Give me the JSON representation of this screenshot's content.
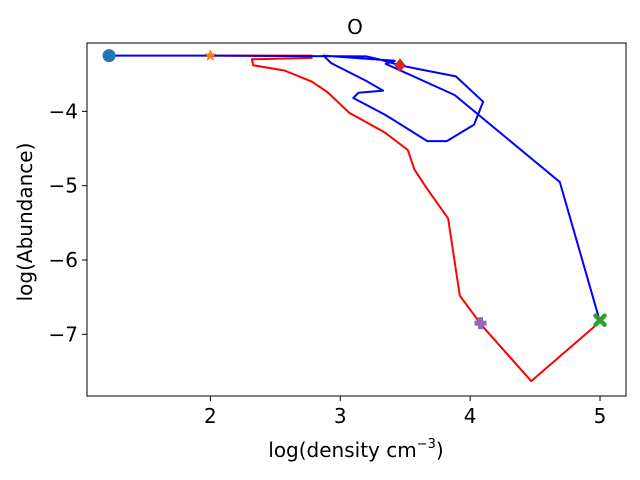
{
  "chart_data": {
    "type": "line",
    "title": "O",
    "xlabel_main": "log(density cm",
    "xlabel_sup": "−3",
    "xlabel_end": ")",
    "ylabel": "log(Abundance)",
    "xlim": [
      1.05,
      5.2
    ],
    "ylim": [
      -7.83,
      -3.08
    ],
    "x_ticks": [
      2,
      3,
      4,
      5
    ],
    "x_tick_labels": [
      "2",
      "3",
      "4",
      "5"
    ],
    "y_ticks": [
      -4,
      -5,
      -6,
      -7
    ],
    "y_tick_labels": [
      "−4",
      "−5",
      "−6",
      "−7"
    ],
    "grid": false,
    "legend": "none",
    "series": [
      {
        "color": "#ff0000",
        "points": [
          [
            2.0,
            -3.25
          ],
          [
            2.78,
            -3.25
          ],
          [
            2.78,
            -3.28
          ],
          [
            2.32,
            -3.3
          ],
          [
            2.33,
            -3.38
          ],
          [
            2.57,
            -3.45
          ],
          [
            2.78,
            -3.6
          ],
          [
            2.9,
            -3.74
          ],
          [
            3.07,
            -4.02
          ],
          [
            3.34,
            -4.28
          ],
          [
            3.52,
            -4.52
          ],
          [
            3.57,
            -4.78
          ],
          [
            3.66,
            -5.02
          ],
          [
            3.83,
            -5.44
          ],
          [
            3.92,
            -6.48
          ],
          [
            4.09,
            -6.88
          ],
          [
            4.47,
            -7.63
          ],
          [
            5.0,
            -6.83
          ]
        ]
      },
      {
        "color": "#0000ff",
        "points": [
          [
            1.22,
            -3.25
          ],
          [
            2.0,
            -3.25
          ],
          [
            3.2,
            -3.26
          ],
          [
            3.3,
            -3.3
          ],
          [
            3.46,
            -3.38
          ],
          [
            3.6,
            -3.43
          ],
          [
            3.89,
            -3.53
          ],
          [
            4.1,
            -3.87
          ],
          [
            4.03,
            -4.18
          ],
          [
            3.82,
            -4.4
          ],
          [
            3.67,
            -4.4
          ],
          [
            3.35,
            -4.05
          ],
          [
            3.1,
            -3.82
          ],
          [
            3.14,
            -3.75
          ],
          [
            3.33,
            -3.72
          ],
          [
            3.2,
            -3.59
          ],
          [
            2.93,
            -3.35
          ],
          [
            2.87,
            -3.25
          ],
          [
            3.42,
            -3.32
          ],
          [
            3.35,
            -3.36
          ],
          [
            3.88,
            -3.78
          ],
          [
            4.69,
            -4.95
          ],
          [
            5.0,
            -6.83
          ]
        ]
      }
    ],
    "markers": [
      {
        "name": "start-circle",
        "shape": "circle",
        "x": 1.22,
        "y": -3.25,
        "color": "#1f77b4"
      },
      {
        "name": "star-marker",
        "shape": "star",
        "x": 2.0,
        "y": -3.25,
        "color": "#ff7f0e"
      },
      {
        "name": "end-x-marker",
        "shape": "x",
        "x": 5.0,
        "y": -6.81,
        "color": "#2ca02c"
      },
      {
        "name": "diamond-marker",
        "shape": "diamond",
        "x": 3.46,
        "y": -3.38,
        "color": "#d62728"
      },
      {
        "name": "plus-marker",
        "shape": "plus",
        "x": 4.08,
        "y": -6.85,
        "color": "#9467bd"
      }
    ]
  }
}
